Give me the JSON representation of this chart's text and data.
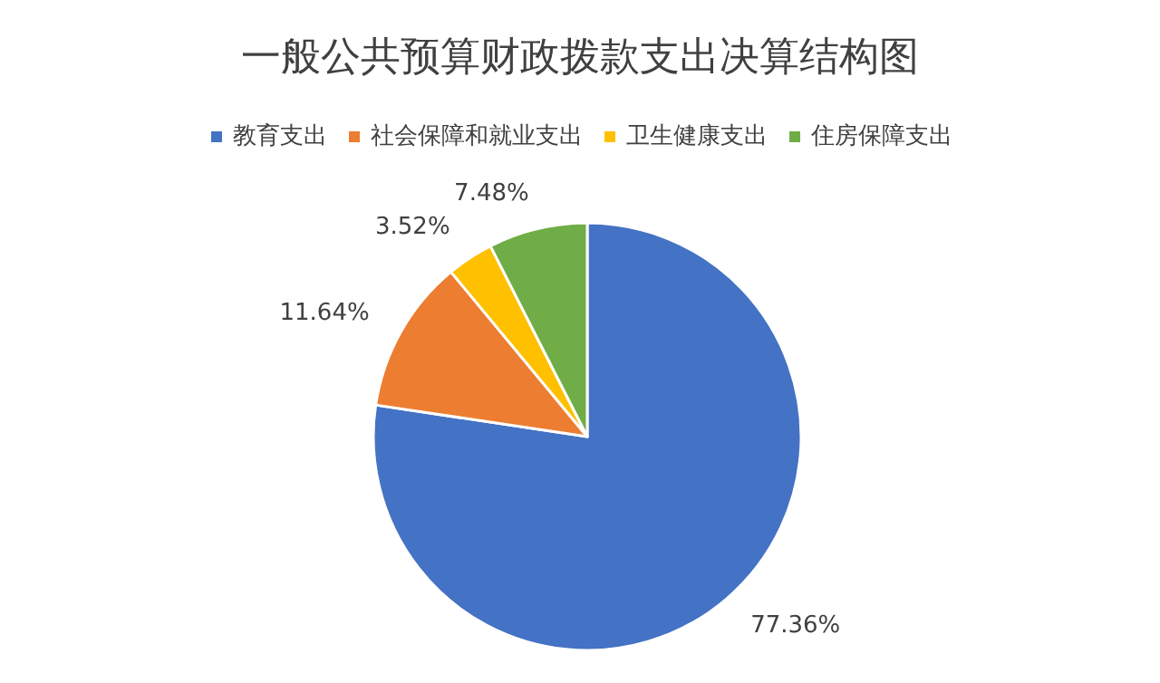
{
  "chart_data": {
    "type": "pie",
    "title": "一般公共预算财政拨款支出决算结构图",
    "categories": [
      "教育支出",
      "社会保障和就业支出",
      "卫生健康支出",
      "住房保障支出"
    ],
    "values": [
      77.36,
      11.64,
      3.52,
      7.48
    ],
    "colors": [
      "#4472c4",
      "#ed7d31",
      "#ffc000",
      "#70ad47"
    ],
    "value_labels": [
      "77.36%",
      "11.64%",
      "3.52%",
      "7.48%"
    ],
    "legend": "top"
  }
}
